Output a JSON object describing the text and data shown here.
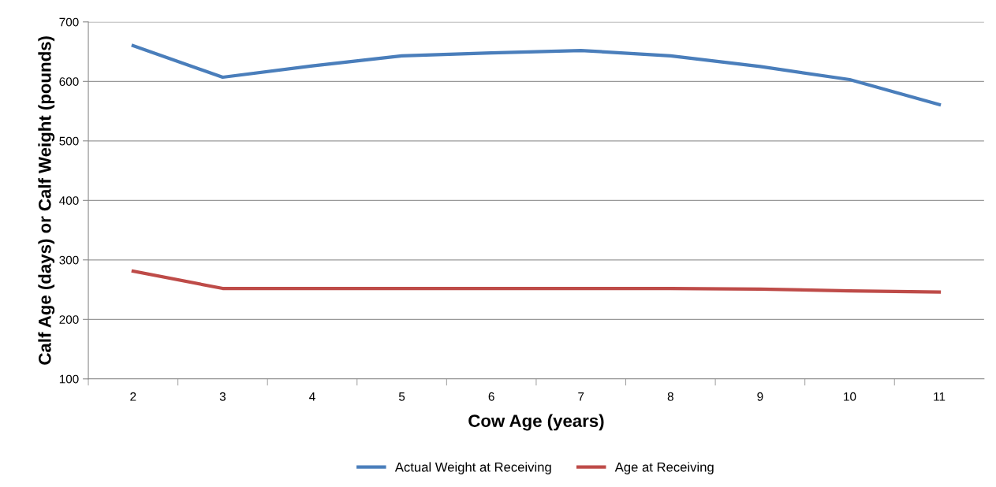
{
  "chart_data": {
    "type": "line",
    "xlabel": "Cow Age (years)",
    "ylabel": "Calf Age (days) or Calf Weight (pounds)",
    "categories": [
      "2",
      "3",
      "4",
      "5",
      "6",
      "7",
      "8",
      "9",
      "10",
      "11"
    ],
    "series": [
      {
        "name": "Actual Weight at Receiving",
        "color": "#4a7ebb",
        "values": [
          660,
          607,
          626,
          643,
          648,
          652,
          643,
          625,
          603,
          561
        ]
      },
      {
        "name": "Age at Receiving",
        "color": "#be4b48",
        "values": [
          281,
          252,
          252,
          252,
          252,
          252,
          252,
          251,
          248,
          246
        ]
      }
    ],
    "ylim": [
      100,
      700
    ],
    "yticks": [
      100,
      200,
      300,
      400,
      500,
      600,
      700
    ],
    "grid": "y",
    "legend": "bottom",
    "marker": "none",
    "line_style": "solid"
  }
}
